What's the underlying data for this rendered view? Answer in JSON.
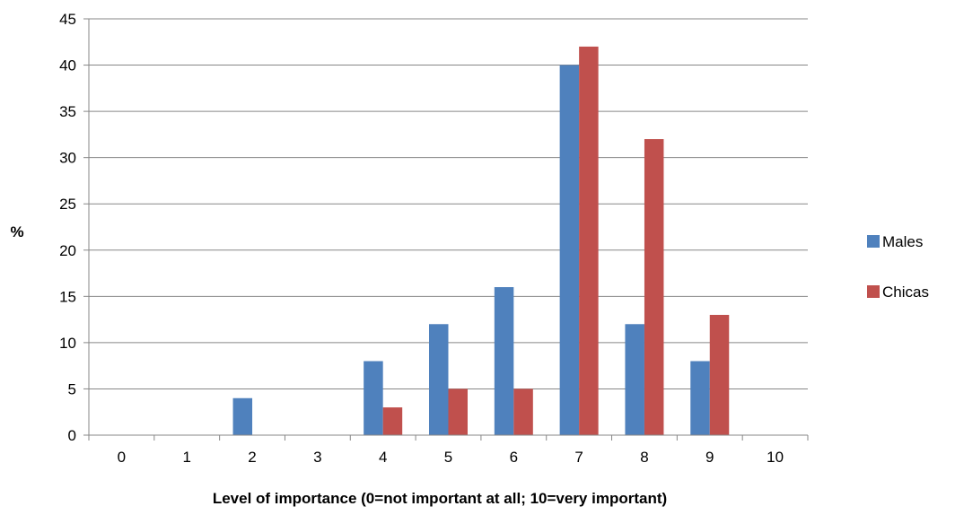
{
  "chart_data": {
    "type": "bar",
    "categories": [
      "0",
      "1",
      "2",
      "3",
      "4",
      "5",
      "6",
      "7",
      "8",
      "9",
      "10"
    ],
    "series": [
      {
        "name": "Males",
        "color": "#4F81BD",
        "values": [
          0,
          0,
          4,
          0,
          8,
          12,
          16,
          40,
          12,
          8,
          0
        ]
      },
      {
        "name": "Chicas",
        "color": "#C0504D",
        "values": [
          0,
          0,
          0,
          0,
          3,
          5,
          5,
          42,
          32,
          13,
          0
        ]
      }
    ],
    "title": "",
    "xlabel": "Level of importance (0=not important at all; 10=very important)",
    "ylabel": "%",
    "ylim": [
      0,
      45
    ],
    "yticks": [
      0,
      5,
      10,
      15,
      20,
      25,
      30,
      35,
      40,
      45
    ],
    "grid": "horizontal",
    "legend_position": "right",
    "colors": {
      "grid": "#878787",
      "axis": "#878787"
    }
  }
}
